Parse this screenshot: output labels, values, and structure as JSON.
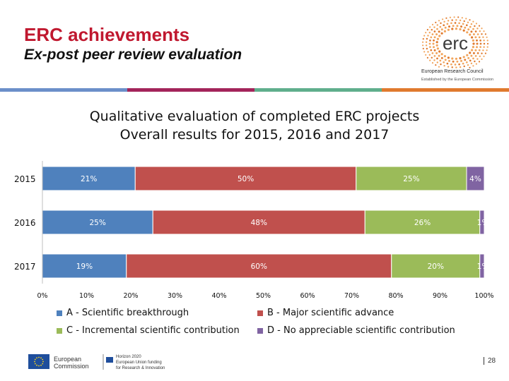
{
  "header": {
    "title": "ERC achievements",
    "subtitle": "Ex-post peer review evaluation"
  },
  "logo": {
    "wordmark": "erc",
    "caption": "European Research Council",
    "sub_caption": "Established by the European Commission"
  },
  "colors": {
    "title_red": "#c0182f",
    "stripe": [
      "#6b8fc9",
      "#a3245a",
      "#c0182f",
      "#5fae8c",
      "#e07a2e"
    ],
    "series_a": "#4f81bd",
    "series_b": "#c0504d",
    "series_c": "#9bbb59",
    "series_d": "#8064a2"
  },
  "chart_data": {
    "type": "bar",
    "orientation": "horizontal-stacked-100",
    "title": "Qualitative evaluation of completed ERC projects",
    "subtitle": "Overall results for 2015, 2016 and 2017",
    "categories": [
      "2015",
      "2016",
      "2017"
    ],
    "series": [
      {
        "name": "A - Scientific breakthrough",
        "values": [
          21,
          25,
          19
        ],
        "labels": [
          "21%",
          "25%",
          "19%"
        ]
      },
      {
        "name": "B - Major scientific advance",
        "values": [
          50,
          48,
          60
        ],
        "labels": [
          "50%",
          "48%",
          "60%"
        ]
      },
      {
        "name": "C - Incremental scientific contribution",
        "values": [
          25,
          26,
          20
        ],
        "labels": [
          "25%",
          "26%",
          "20%"
        ]
      },
      {
        "name": "D - No appreciable scientific contribution",
        "values": [
          4,
          1,
          1
        ],
        "labels": [
          "4%",
          "1%",
          "1%"
        ]
      }
    ],
    "xlim": [
      0,
      100
    ],
    "xticks": [
      "0%",
      "10%",
      "20%",
      "30%",
      "40%",
      "50%",
      "60%",
      "70%",
      "80%",
      "90%",
      "100%"
    ],
    "grid": false,
    "legend_position": "bottom"
  },
  "footer": {
    "commission_line1": "European",
    "commission_line2": "Commission",
    "h2020_line1": "Horizon 2020",
    "h2020_line2": "European Union funding",
    "h2020_line3": "for Research & Innovation",
    "page_number": "28"
  }
}
